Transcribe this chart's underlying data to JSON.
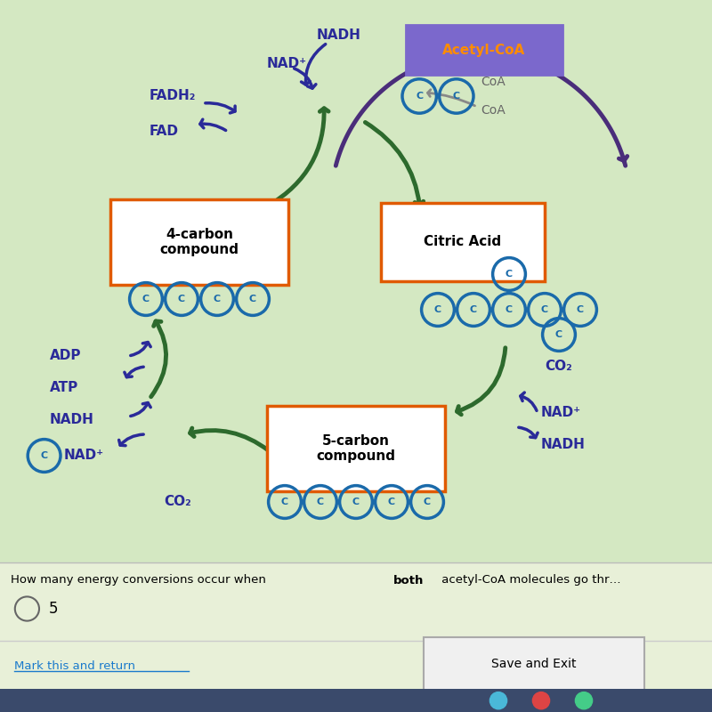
{
  "bg_color": "#d4e8c2",
  "bg_bottom_color": "#3a4a6b",
  "acetyl_coa_label": "Acetyl-CoA",
  "acetyl_coa_bg": "#7b68cc",
  "acetyl_coa_text_color": "#ff8c00",
  "four_carbon_label": "4-carbon\ncompound",
  "citric_acid_label": "Citric Acid",
  "five_carbon_label": "5-carbon\ncompound",
  "box_edge_color": "#e05a00",
  "carbon_circle_color": "#1a6aaa",
  "nadh_color": "#2a2a99",
  "nad_plus_color": "#2a2a99",
  "fadh2_color": "#2a2a99",
  "fad_color": "#2a2a99",
  "adp_color": "#2a2a99",
  "atp_color": "#2a2a99",
  "co2_color": "#2a2a99",
  "green_arrow_color": "#2d6a2d",
  "blue_arrow_color": "#2a2a99",
  "gray_arrow_color": "#888888",
  "purple_arrow_color": "#4a2d7a",
  "save_button_text": "Save and Exit",
  "mark_text": "Mark this and return",
  "quiz_text_normal": "How many energy conversions occur when ",
  "quiz_text_bold": "both",
  "quiz_text_end": " acetyl-CoA molecules go thr…",
  "answer_text": "5"
}
